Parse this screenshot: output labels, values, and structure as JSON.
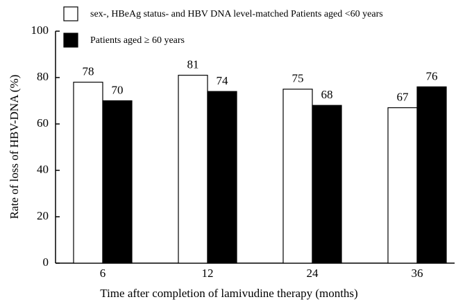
{
  "chart_data": {
    "type": "bar",
    "xlabel": "Time after completion of lamivudine therapy (months)",
    "ylabel": "Rate of loss of HBV-DNA (%)",
    "categories": [
      "6",
      "12",
      "24",
      "36"
    ],
    "series": [
      {
        "name": "sex-, HBeAg status- and HBV DNA level-matched Patients aged <60 years",
        "color": "#ffffff",
        "values": [
          78,
          81,
          75,
          67
        ]
      },
      {
        "name": "Patients aged ≥ 60 years",
        "color": "#000000",
        "values": [
          70,
          74,
          68,
          76
        ]
      }
    ],
    "ylim": [
      0,
      100
    ],
    "yticks": [
      0,
      20,
      40,
      60,
      80,
      100
    ],
    "legend": "upper left"
  }
}
